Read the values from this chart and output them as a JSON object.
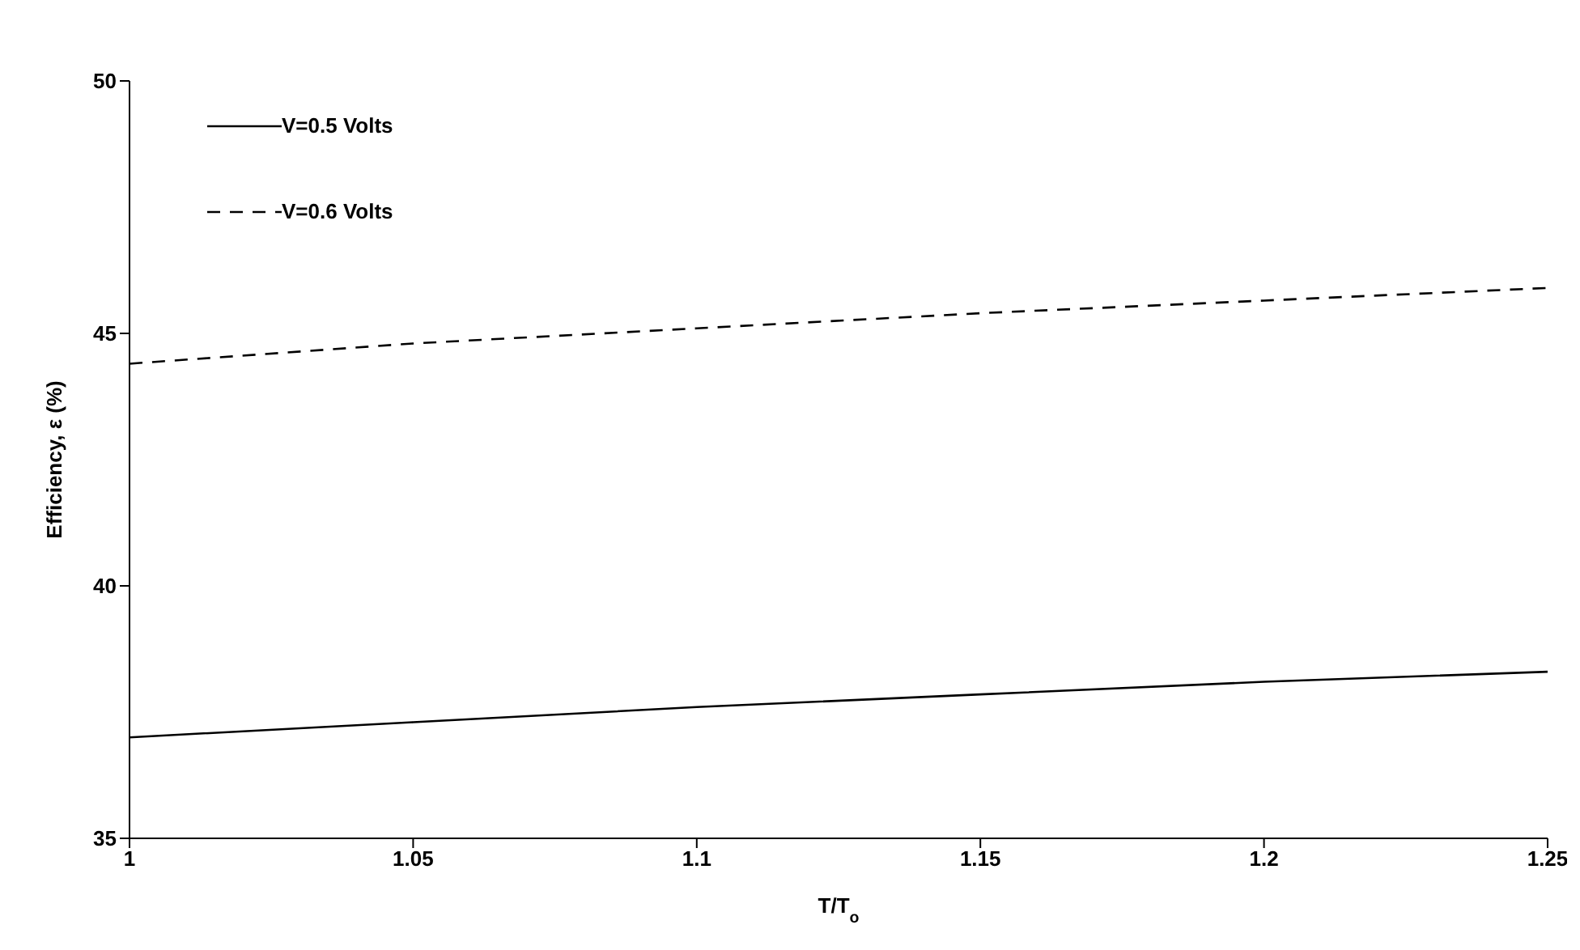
{
  "chart_data": {
    "type": "line",
    "xlabel": "T/T$_{o}$",
    "ylabel": "Efficiency, ε (%)",
    "x": [
      1,
      1.05,
      1.1,
      1.15,
      1.2,
      1.25
    ],
    "xlim": [
      1,
      1.25
    ],
    "xticks": [
      1,
      1.05,
      1.1,
      1.15,
      1.2,
      1.25
    ],
    "ylim": [
      35,
      50
    ],
    "yticks": [
      35,
      40,
      45,
      50
    ],
    "grid": false,
    "legend": "top left",
    "marker": "none",
    "series": [
      {
        "name": "V=0.5 Volts",
        "color": "#000000",
        "line_style": "solid",
        "values": [
          37.0,
          37.3,
          37.6,
          37.85,
          38.1,
          38.3
        ]
      },
      {
        "name": "V=0.6 Volts",
        "color": "#000000",
        "line_style": "dashed",
        "values": [
          44.4,
          44.8,
          45.1,
          45.4,
          45.65,
          45.9
        ]
      }
    ]
  }
}
